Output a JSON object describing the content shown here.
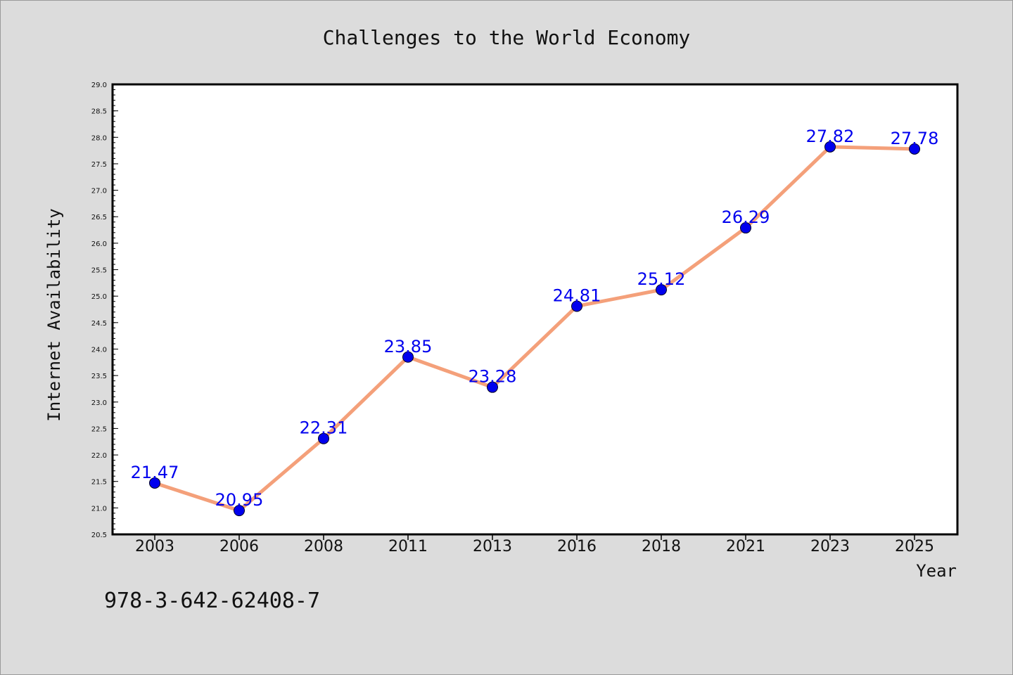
{
  "chart_data": {
    "type": "line",
    "title": "Challenges to the World Economy",
    "xlabel": "Year",
    "ylabel": "Internet Availability",
    "categories": [
      "2003",
      "2006",
      "2008",
      "2011",
      "2013",
      "2016",
      "2018",
      "2021",
      "2023",
      "2025"
    ],
    "series": [
      {
        "values": [
          21.47,
          20.95,
          22.31,
          23.85,
          23.28,
          24.81,
          25.12,
          26.29,
          27.82,
          27.78
        ],
        "labels": [
          "21.47",
          "20.95",
          "22.31",
          "23.85",
          "23.28",
          "24.81",
          "25.12",
          "26.29",
          "27.82",
          "27.78"
        ],
        "line_color": "#f4a07a",
        "marker_color": "#0000ee"
      }
    ],
    "ylim": [
      20.5,
      29.0
    ],
    "yticks": [
      "20.5",
      "21.0",
      "21.5",
      "22.0",
      "22.5",
      "23.0",
      "23.5",
      "24.0",
      "24.5",
      "25.0",
      "25.5",
      "26.0",
      "26.5",
      "27.0",
      "27.5",
      "28.0",
      "28.5",
      "29.0"
    ],
    "grid": false,
    "legend": "none"
  },
  "footnote": "978-3-642-62408-7"
}
